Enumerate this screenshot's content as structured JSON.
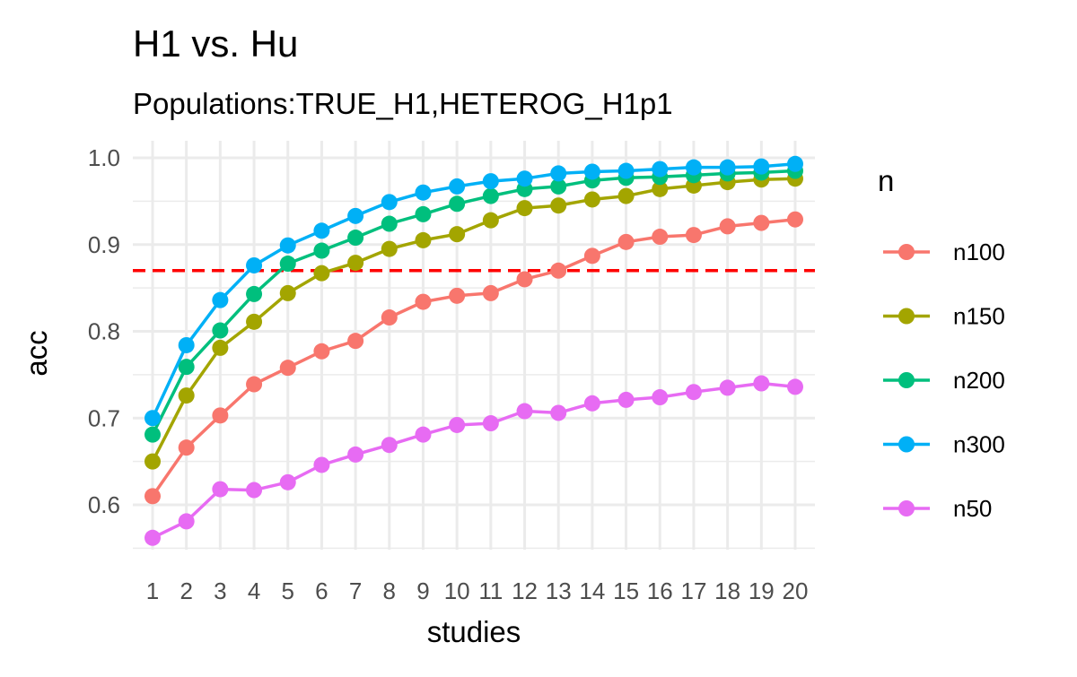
{
  "chart_data": {
    "type": "line",
    "title": "H1 vs. Hu",
    "subtitle": "Populations:TRUE_H1,HETEROG_H1p1",
    "xlabel": "studies",
    "ylabel": "acc",
    "x": [
      "1",
      "2",
      "3",
      "4",
      "5",
      "6",
      "7",
      "8",
      "9",
      "10",
      "11",
      "12",
      "13",
      "14",
      "15",
      "16",
      "17",
      "18",
      "19",
      "20"
    ],
    "ylim": [
      0.55,
      1.0
    ],
    "yticks": [
      "0.6",
      "0.7",
      "0.8",
      "0.9",
      "1.0"
    ],
    "grid": true,
    "legend": {
      "title": "n",
      "position": "right"
    },
    "reference_line": {
      "y": 0.87,
      "color": "#ff0000",
      "style": "dashed"
    },
    "series": [
      {
        "name": "n100",
        "color": "#F8766D",
        "values": [
          0.61,
          0.666,
          0.703,
          0.739,
          0.758,
          0.777,
          0.789,
          0.816,
          0.834,
          0.841,
          0.844,
          0.86,
          0.87,
          0.887,
          0.903,
          0.909,
          0.911,
          0.921,
          0.925,
          0.929
        ]
      },
      {
        "name": "n150",
        "color": "#A3A500",
        "values": [
          0.65,
          0.726,
          0.781,
          0.811,
          0.844,
          0.867,
          0.879,
          0.895,
          0.905,
          0.912,
          0.928,
          0.942,
          0.945,
          0.952,
          0.956,
          0.964,
          0.968,
          0.972,
          0.975,
          0.976
        ]
      },
      {
        "name": "n200",
        "color": "#00BF7D",
        "values": [
          0.681,
          0.759,
          0.801,
          0.843,
          0.878,
          0.893,
          0.908,
          0.924,
          0.935,
          0.947,
          0.956,
          0.964,
          0.967,
          0.974,
          0.977,
          0.978,
          0.98,
          0.982,
          0.983,
          0.985
        ]
      },
      {
        "name": "n300",
        "color": "#00B0F6",
        "values": [
          0.7,
          0.784,
          0.836,
          0.876,
          0.899,
          0.916,
          0.933,
          0.949,
          0.96,
          0.967,
          0.973,
          0.976,
          0.982,
          0.984,
          0.985,
          0.987,
          0.989,
          0.989,
          0.99,
          0.993
        ]
      },
      {
        "name": "n50",
        "color": "#E76BF3",
        "values": [
          0.562,
          0.581,
          0.618,
          0.617,
          0.626,
          0.646,
          0.658,
          0.669,
          0.681,
          0.692,
          0.694,
          0.708,
          0.706,
          0.717,
          0.721,
          0.724,
          0.73,
          0.735,
          0.74,
          0.736
        ]
      }
    ]
  }
}
